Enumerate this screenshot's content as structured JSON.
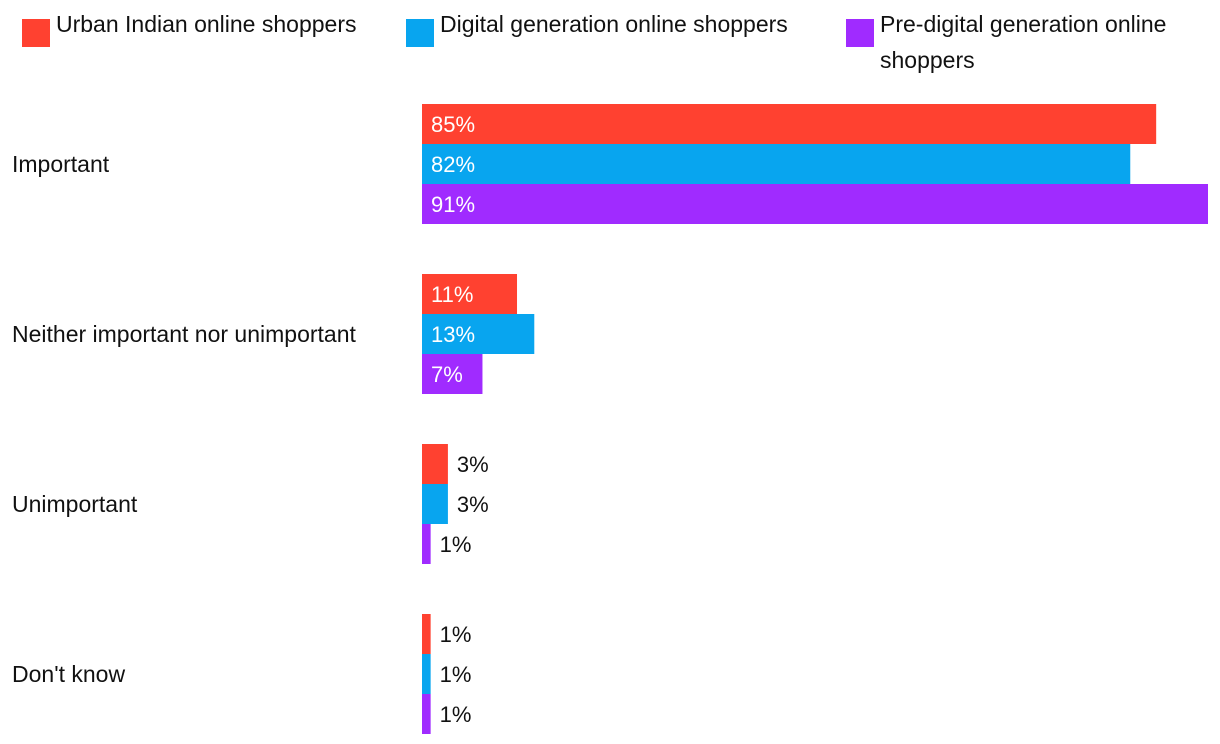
{
  "chart_data": {
    "type": "bar",
    "orientation": "horizontal",
    "title": "",
    "xlabel": "",
    "ylabel": "",
    "grid": false,
    "legend_position": "top",
    "categories": [
      "Important",
      "Neither important nor unimportant",
      "Unimportant",
      "Don't know"
    ],
    "series": [
      {
        "name": "Urban Indian online shoppers",
        "color": "#ff4130",
        "values": [
          85,
          11,
          3,
          1
        ],
        "labels": [
          "85%",
          "11%",
          "3%",
          "1%"
        ]
      },
      {
        "name": "Digital generation online shoppers",
        "color": "#08a5ef",
        "values": [
          82,
          13,
          3,
          1
        ],
        "labels": [
          "82%",
          "13%",
          "3%",
          "1%"
        ]
      },
      {
        "name": "Pre-digital generation online shoppers",
        "color": "#a02bff",
        "values": [
          91,
          7,
          1,
          1
        ],
        "labels": [
          "91%",
          "7%",
          "1%",
          "1%"
        ]
      }
    ],
    "xlim": [
      0,
      91
    ]
  }
}
